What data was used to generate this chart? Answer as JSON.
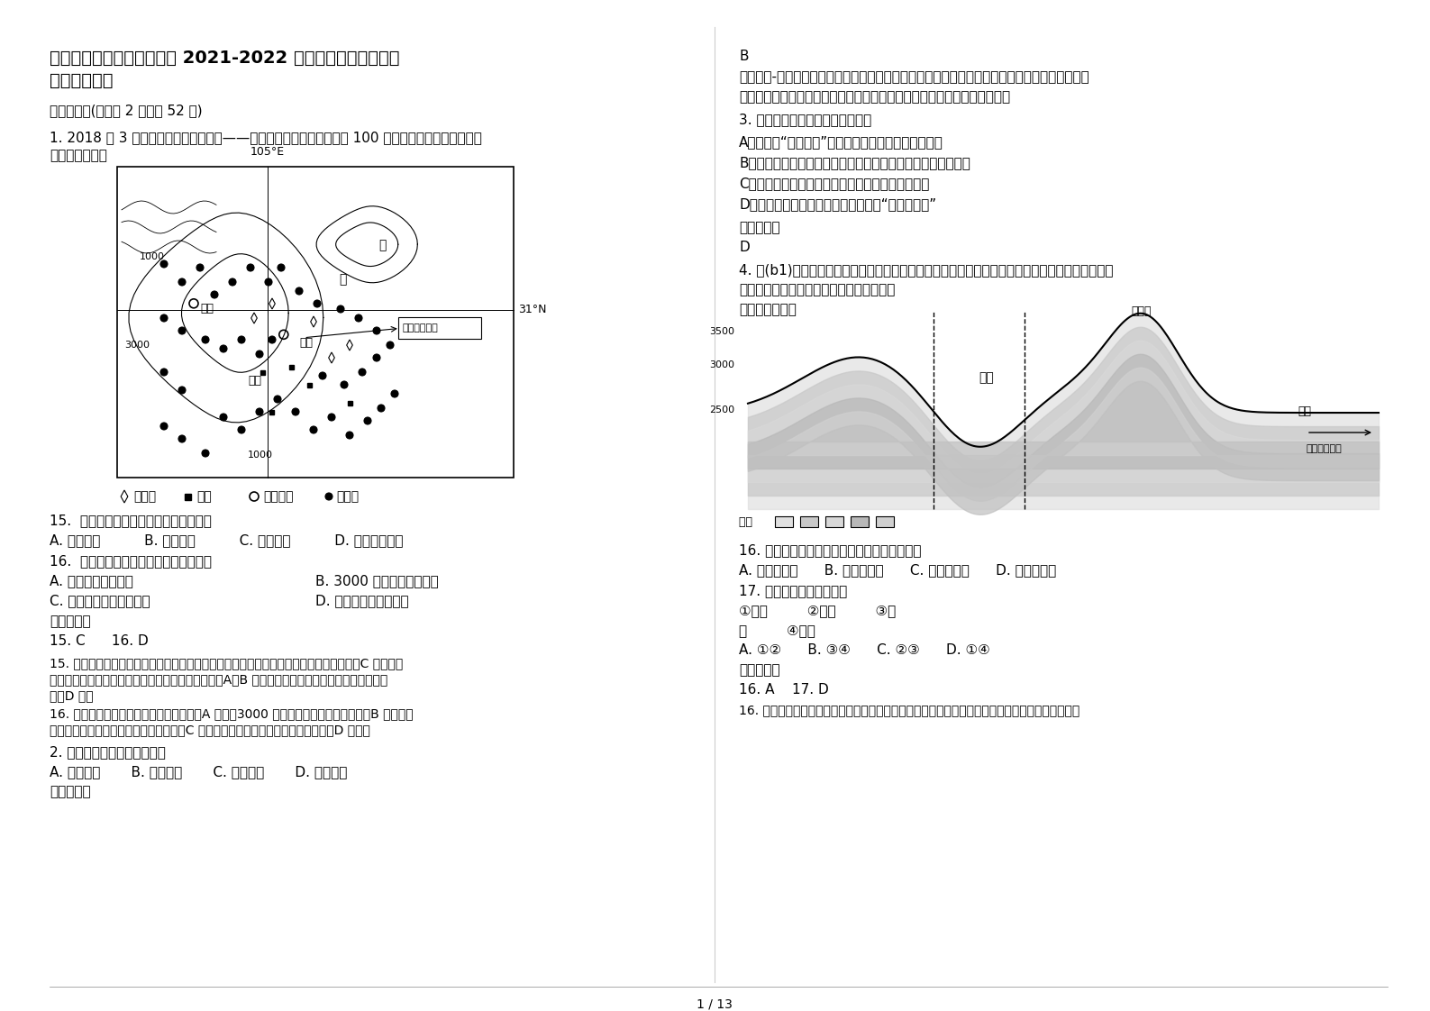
{
  "bg_color": "#ffffff",
  "text_color": "#000000",
  "title_line1": "湖北省荆门市钟祥第六中学 2021-2022 学年高二地理上学期期",
  "title_line2": "末试题含解析",
  "section1": "一、选择题(每小题 2 分，共 52 分)",
  "q1_line1": "1. 2018 年 3 月我国首个大型页岩气田——涪陵页岩气田建成，年产能 100 亿立方米。读成渝地区图，",
  "q1_line2": "完成下面小题。",
  "map_label_105e": "105°E",
  "map_label_31n": "31°N",
  "map_label_1000a": "1000",
  "map_label_3000": "3000",
  "map_label_1000b": "1000",
  "map_label_jiang": "江",
  "map_label_chang": "长",
  "map_label_chengdu": "成都",
  "map_label_chongqing": "重庆",
  "map_label_yibin": "宜宾",
  "map_label_fuling": "涪陵页岩气田",
  "legend_text1": "天然气",
  "legend_text2": "煤炭",
  "legend_text3": "中等城市",
  "legend_text4": "小城市",
  "q15": "15.  页岩气按自然资源的自然属性分属于",
  "q15_opts": "A. 气候资源          B. 生物资源          C. 矿产资源          D. 非可再生资源",
  "q16": "16.  关于该区域中城市的表述，正确的是",
  "q16_optA": "A. 等级越高数量越多",
  "q16_optB": "B. 3000 米以上无聚落分布",
  "q16_optC": "C. 宜宾服务范围大于成都",
  "q16_optD": "D. 重庆市重工业较发达",
  "ref_ans_bold": "参考答案：",
  "ans_15_16": "15. C      16. D",
  "explain15_line1": "15. 页岩气按自然资源的自然属性分属于矿产资源，是在地质历史时期埋藏在地下形成的，C 对。气候",
  "explain15_line2": "资源、生物资源分布在地表，属于大气圈、生物圈，A、B 错。非可再生资源是按照可再生属性划分",
  "explain15_line3": "的，D 错。",
  "explain16_line1": "16. 该区域中城市的等级越高，数量越少，A 错误。3000 米以上仍有聚落分布，较少，B 错误。宜",
  "explain16_line2": "宾的等级比成都低，服务范围小于成都，C 错误。重庆市发展较早，重工业较发达，D 正确。",
  "q2": "2. 下列山脉中，位置最西的是",
  "q2_opts": "A. 长白山脉       B. 台湾山脉       C. 小兴安岭       D. 武夷山脉",
  "rc_ans_b": "B",
  "rc_explain2_line1": "我国东北-西南走向的山脉，自西向东分为三列：西侧一列包括大兴安岭、太行山、巫山、雪峰山",
  "rc_explain2_line2": "等；中间一列包括长白山、武夷山等；最东的一列是台湾岛上的台湾山脉。",
  "q3": "3. 关于非洲地理的叙述，正确的是",
  "q3_optA": "A、非洲有“高原大陆”之称，平均海拔高度居各洲之首",
  "q3_optB": "B、非洲人口的自然增长率和国家、地区数目居世界各大陆之首",
  "q3_optC": "C、非洲是天然橡胶、椰枣、咖啡和油棕的最大产区",
  "q3_optD": "D、绕道好望角的航线被西方国家称为“海上生命线”",
  "q3_ans": "D",
  "q4_line1": "4. 沘(b1)江是澜沧江上游的一条主要河流，流域内分布着全国最大的铅锌矿区，是重要的有色金属",
  "q4_line2": "生产基地。读沘江及周边地区地质剖面图。",
  "q4_line3": "完成下列各题。",
  "geo_label_maanshan": "马鞍山",
  "geo_label_bijiang": "沘江",
  "geo_label_yanceng": "岩层",
  "geo_label_direction": "岩层运动方向",
  "geo_label_yanceng2": "岩层",
  "geo_val_3500": "3500",
  "geo_val_3000": "3000",
  "geo_val_2500": "2500",
  "q16r": "16. 在沘江流域实施了梯级开发，其主要目的是",
  "q16r_opts": "A. 增加发电量      B. 增强通航力      C. 防洪与抗旱      D. 促进旅游业",
  "q17r": "17. 沘江谷地的地质构造是",
  "q17r_opts1": "①向斜         ②背斜         ③地",
  "q17r_opts2": "垒         ④地堑",
  "q17r_answer": "A. ①②      B. ③④      C. ②③      D. ①④",
  "q17r_ans": "16. A    17. D",
  "q17r_explain": "16. 梯级开发就是开发中、大型河流的水电资源，梯级开发是从河流的中下游处慢慢的像梯子一样，",
  "page_num": "1 / 13"
}
